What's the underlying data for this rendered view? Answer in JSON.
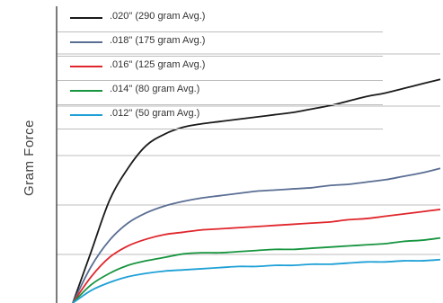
{
  "chart_data": {
    "type": "line",
    "ylabel": "Gram Force",
    "xlabel": "",
    "grid": true,
    "x": [
      0,
      0.05,
      0.1,
      0.15,
      0.2,
      0.25,
      0.3,
      0.35,
      0.4,
      0.45,
      0.5,
      0.55,
      0.6,
      0.65,
      0.7,
      0.75,
      0.8,
      0.85,
      0.9,
      0.95,
      1.0
    ],
    "series": [
      {
        "name": ".020\" (290 gram Avg.)",
        "color": "#1a1a1a",
        "values": [
          0,
          45,
          90,
          118,
          138,
          148,
          154,
          157,
          159,
          161,
          163,
          165,
          167,
          170,
          173,
          177,
          181,
          184,
          188,
          192,
          196
        ]
      },
      {
        "name": ".018\" (175 gram Avg.)",
        "color": "#5a6e93",
        "values": [
          0,
          32,
          55,
          70,
          79,
          85,
          89,
          92,
          94,
          96,
          98,
          99,
          100,
          101,
          103,
          104,
          106,
          108,
          111,
          114,
          118
        ]
      },
      {
        "name": ".016\" (125 gram Avg.)",
        "color": "#e0262c",
        "values": [
          0,
          23,
          40,
          50,
          56,
          60,
          62,
          64,
          65,
          66,
          67,
          68,
          69,
          70,
          71,
          73,
          74,
          76,
          78,
          80,
          82
        ]
      },
      {
        "name": ".014\" (80 gram Avg.)",
        "color": "#17953f",
        "values": [
          0,
          16,
          26,
          33,
          37,
          40,
          43,
          44,
          44,
          45,
          46,
          47,
          47,
          48,
          49,
          50,
          51,
          52,
          54,
          55,
          57
        ]
      },
      {
        "name": ".012\" (50 gram Avg.)",
        "color": "#1ea0d6",
        "values": [
          0,
          11,
          18,
          23,
          26,
          28,
          29,
          30,
          31,
          32,
          32,
          33,
          33,
          34,
          34,
          35,
          36,
          36,
          37,
          37,
          38
        ]
      }
    ]
  }
}
